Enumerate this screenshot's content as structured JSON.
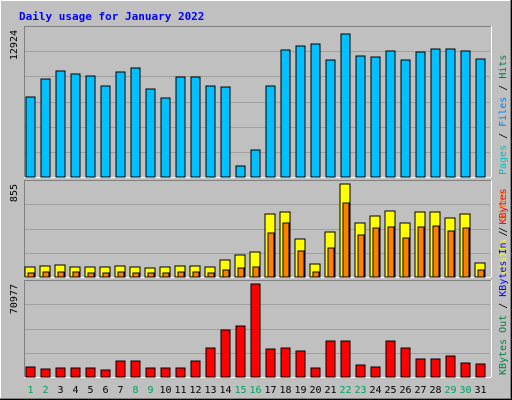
{
  "chart_data": [
    {
      "type": "bar",
      "title": "Daily usage for January 2022",
      "categories": [
        "1",
        "2",
        "3",
        "4",
        "5",
        "6",
        "7",
        "8",
        "9",
        "10",
        "11",
        "12",
        "13",
        "14",
        "15",
        "16",
        "17",
        "18",
        "19",
        "20",
        "21",
        "22",
        "23",
        "24",
        "25",
        "26",
        "27",
        "28",
        "29",
        "30",
        "31"
      ],
      "weekend_days": [
        "1",
        "2",
        "8",
        "9",
        "15",
        "16",
        "22",
        "23",
        "29",
        "30"
      ],
      "grid": true,
      "colors": {
        "background": "#c0c0c0",
        "plot_background": "#c0c0c0",
        "title": "#0000ff",
        "hits": "#00c0ff",
        "files": "#0080ff",
        "pages": "#00c0c0",
        "visits": "#ffff00",
        "sites": "#ff8000",
        "kb_in": "#ff0000",
        "kb_out": "#008040",
        "weekday_label": "#000000",
        "weekend_label": "#00a060"
      },
      "panels": [
        {
          "id": "hits",
          "y_max": 12924,
          "y_max_label": "12924",
          "right_label": [
            {
              "text": "Pages",
              "color": "#00c0c0"
            },
            {
              "text": " / ",
              "color": "#000000"
            },
            {
              "text": "Files",
              "color": "#0080ff"
            },
            {
              "text": " / ",
              "color": "#000000"
            },
            {
              "text": "Hits",
              "color": "#008040"
            }
          ],
          "series": [
            {
              "name": "Hits",
              "color": "#00c0ff",
              "values": [
                7030,
                8620,
                9290,
                9060,
                8910,
                8030,
                9250,
                9580,
                7720,
                6960,
                8770,
                8830,
                8030,
                7900,
                1000,
                2350,
                7960,
                11170,
                11560,
                11680,
                10270,
                12600,
                10640,
                10540,
                11060,
                10320,
                10990,
                11240,
                11210,
                11080,
                10340
              ]
            }
          ]
        },
        {
          "id": "visits",
          "y_max": 855,
          "y_max_label": "855",
          "right_label": [
            {
              "text": "Visits",
              "color": "#ffff00"
            },
            {
              "text": " / ",
              "color": "#000000"
            },
            {
              "text": "Sites",
              "color": "#ff8000"
            }
          ],
          "series": [
            {
              "name": "Visits",
              "color": "#ffff00",
              "values": [
                90,
                100,
                110,
                95,
                95,
                90,
                105,
                90,
                85,
                90,
                100,
                100,
                90,
                160,
                200,
                230,
                580,
                600,
                350,
                120,
                410,
                855,
                500,
                560,
                610,
                500,
                600,
                600,
                540,
                580,
                130
              ]
            },
            {
              "name": "Sites",
              "color": "#ff8000",
              "values": [
                40,
                45,
                45,
                45,
                40,
                40,
                45,
                40,
                40,
                40,
                45,
                45,
                40,
                60,
                80,
                90,
                400,
                500,
                240,
                45,
                270,
                680,
                390,
                450,
                460,
                360,
                460,
                470,
                420,
                450,
                60
              ]
            }
          ]
        },
        {
          "id": "kbytes",
          "y_max": 70977,
          "y_max_label": "70977",
          "right_label": [
            {
              "text": "KBytes Out",
              "color": "#008040"
            },
            {
              "text": " / ",
              "color": "#000000"
            },
            {
              "text": "KBytes In",
              "color": "#0000ff"
            },
            {
              "text": " / ",
              "color": "#000000"
            },
            {
              "text": "KBytes",
              "color": "#ff0000"
            }
          ],
          "series": [
            {
              "name": "KBytes",
              "color": "#ff0000",
              "values": [
                7400,
                6400,
                6800,
                7000,
                7200,
                5200,
                12200,
                11900,
                6500,
                6900,
                7200,
                12300,
                22400,
                35900,
                39100,
                70977,
                21400,
                21800,
                19900,
                6700,
                27400,
                27800,
                9400,
                7700,
                27200,
                21800,
                13900,
                13700,
                15800,
                10600,
                10200
              ]
            }
          ]
        }
      ]
    }
  ]
}
